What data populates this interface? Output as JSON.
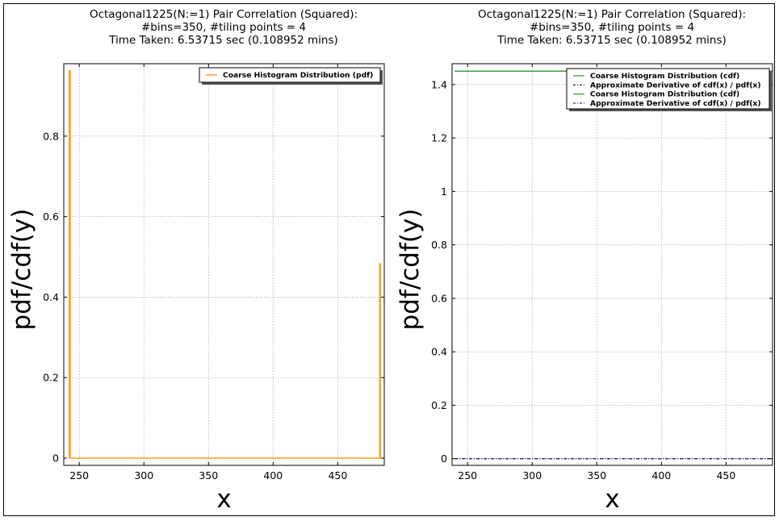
{
  "chart_data": [
    {
      "type": "line",
      "title_lines": [
        "Octagonal1225(N:=1) Pair Correlation (Squared):",
        "#bins=350, #tiling points = 4",
        "Time Taken: 6.53715 sec (0.108952 mins)"
      ],
      "xlabel": "x",
      "ylabel": "pdf/cdf(y)",
      "xlim": [
        238,
        486
      ],
      "ylim": [
        -0.018,
        0.98
      ],
      "xticks": [
        250,
        300,
        350,
        400,
        450
      ],
      "xtick_labels": [
        "250",
        "300",
        "350",
        "400",
        "450"
      ],
      "yticks": [
        0,
        0.2,
        0.4,
        0.6,
        0.8
      ],
      "ytick_labels": [
        "0",
        "0.2",
        "0.4",
        "0.6",
        "0.8"
      ],
      "grid": true,
      "legend_position": "top-right",
      "series": [
        {
          "name": "Coarse Histogram Distribution (pdf)",
          "color": "#ff9900",
          "style": "solid",
          "x": [
            242.3,
            242.3,
            243.0,
            243.0,
            482.5,
            482.5,
            483.0,
            483.0
          ],
          "y": [
            0,
            0.963,
            0.963,
            0,
            0,
            0.483,
            0.483,
            0
          ]
        }
      ]
    },
    {
      "type": "line",
      "title_lines": [
        "Octagonal1225(N:=1) Pair Correlation (Squared):",
        "#bins=350, #tiling points = 4",
        "Time Taken: 6.53715 sec (0.108952 mins)"
      ],
      "xlabel": "x",
      "ylabel": "pdf/cdf(y)",
      "xlim": [
        238,
        486
      ],
      "ylim": [
        -0.025,
        1.478
      ],
      "xticks": [
        250,
        300,
        350,
        400,
        450
      ],
      "xtick_labels": [
        "250",
        "300",
        "350",
        "400",
        "450"
      ],
      "yticks": [
        0,
        0.2,
        0.4,
        0.6,
        0.8,
        1,
        1.2,
        1.4
      ],
      "ytick_labels": [
        "0",
        "0.2",
        "0.4",
        "0.6",
        "0.8",
        "1",
        "1.2",
        "1.4"
      ],
      "grid": true,
      "legend_position": "top-right",
      "series": [
        {
          "name": "Coarse Histogram Distribution (cdf)",
          "color": "#3a9e3a",
          "style": "solid",
          "x": [
            240,
            486
          ],
          "y": [
            1.45,
            1.45
          ]
        },
        {
          "name": "Approximate Derivative of cdf(x) / pdf(x)",
          "color": "#2a2a66",
          "style": "dashdot",
          "x": [
            240,
            486
          ],
          "y": [
            0,
            0
          ]
        },
        {
          "name": "Coarse Histogram Distribution (cdf)",
          "color": "#3a9e3a",
          "style": "solid",
          "x": [
            240,
            486
          ],
          "y": [
            1.45,
            1.45
          ]
        },
        {
          "name": "Approximate Derivative of cdf(x) / pdf(x)",
          "color": "#2a2a66",
          "style": "dashdot",
          "x": [
            240,
            486
          ],
          "y": [
            0,
            0
          ]
        }
      ]
    }
  ]
}
